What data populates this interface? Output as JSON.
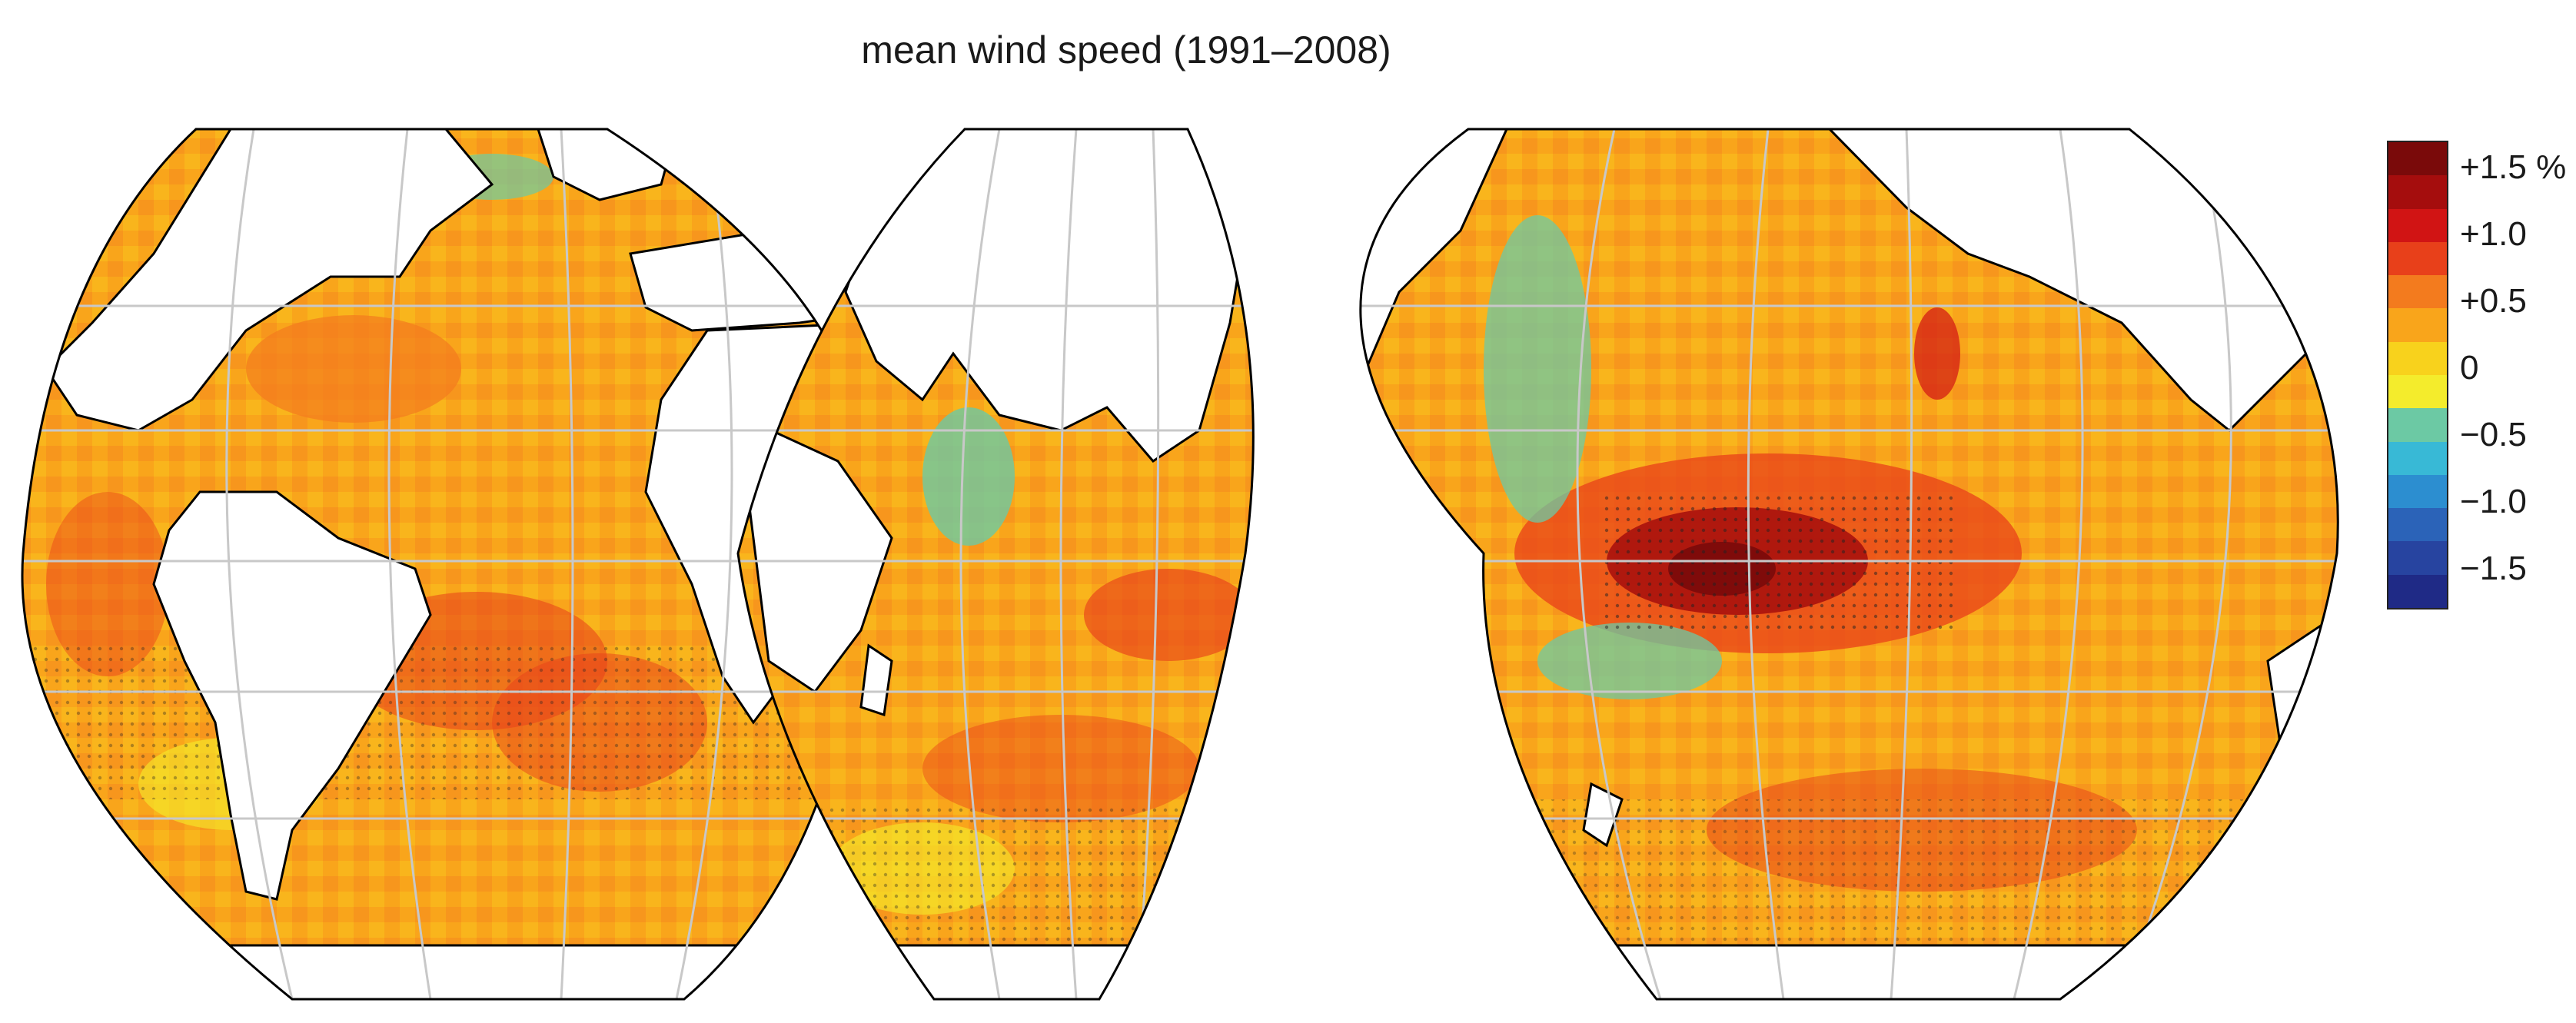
{
  "title": "mean wind speed (1991–2008)",
  "map": {
    "projection": "interrupted Goode homolosine (3 lobes)",
    "variable": "mean wind speed trend",
    "period": "1991–2008",
    "stippling": "black dots mark significant grid cells",
    "coastline_color": "#000000",
    "graticule_color": "#c8c8c8",
    "land_color": "#ffffff"
  },
  "colorbar": {
    "labels": [
      "+1.5 %",
      "+1.0",
      "+0.5",
      "0",
      "−0.5",
      "−1.0",
      "−1.5"
    ],
    "colors": [
      "#7a0a0a",
      "#a50d0d",
      "#d11414",
      "#e8401a",
      "#f37b1e",
      "#f9a51b",
      "#f8d21c",
      "#f4ec2c",
      "#6cc9a4",
      "#38b9d6",
      "#2c8ed0",
      "#2b63b8",
      "#2744a0",
      "#1f2a86"
    ]
  }
}
